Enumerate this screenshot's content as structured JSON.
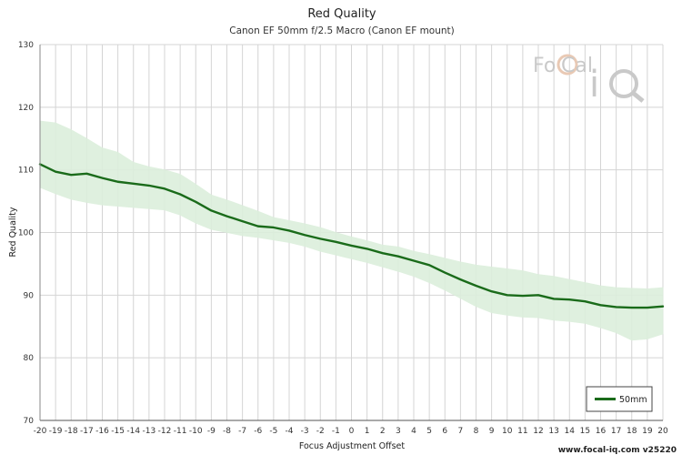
{
  "chart_data": {
    "type": "line",
    "title": "Red Quality",
    "subtitle": "Canon EF 50mm f/2.5 Macro (Canon EF mount)",
    "xlabel": "Focus Adjustment Offset",
    "ylabel": "Red Quality",
    "xlim": [
      -20,
      20
    ],
    "ylim": [
      70,
      130
    ],
    "yticks": [
      70,
      80,
      90,
      100,
      110,
      120,
      130
    ],
    "grid": true,
    "legend_position": "bottom-right",
    "series": [
      {
        "name": "50mm",
        "color": "#1a6b1a",
        "band_color": "#dcefdc",
        "x": [
          -20,
          -19,
          -18,
          -17,
          -16,
          -15,
          -14,
          -13,
          -12,
          -11,
          -10,
          -9,
          -8,
          -7,
          -6,
          -5,
          -4,
          -3,
          -2,
          -1,
          0,
          1,
          2,
          3,
          4,
          5,
          6,
          7,
          8,
          9,
          10,
          11,
          12,
          13,
          14,
          15,
          16,
          17,
          18,
          19,
          20
        ],
        "values": [
          110.9,
          109.7,
          109.2,
          109.4,
          108.7,
          108.1,
          107.8,
          107.5,
          107.0,
          106.1,
          104.9,
          103.5,
          102.6,
          101.8,
          101.0,
          100.8,
          100.3,
          99.6,
          99.0,
          98.5,
          97.9,
          97.4,
          96.7,
          96.2,
          95.5,
          94.8,
          93.6,
          92.5,
          91.5,
          90.6,
          90.0,
          89.9,
          90.0,
          89.4,
          89.3,
          89.0,
          88.4,
          88.1,
          88.0,
          88.0,
          88.2
        ],
        "upper": [
          117.8,
          117.5,
          116.4,
          115.0,
          113.5,
          112.8,
          111.2,
          110.5,
          110.0,
          109.3,
          107.7,
          106.0,
          105.2,
          104.3,
          103.4,
          102.4,
          101.9,
          101.4,
          100.8,
          100.0,
          99.3,
          98.7,
          98.0,
          97.7,
          97.0,
          96.5,
          95.9,
          95.3,
          94.8,
          94.5,
          94.2,
          93.9,
          93.3,
          93.0,
          92.5,
          92.0,
          91.5,
          91.2,
          91.1,
          91.0,
          91.2
        ],
        "lower": [
          107.2,
          106.2,
          105.3,
          104.8,
          104.4,
          104.2,
          104.0,
          103.8,
          103.6,
          102.8,
          101.5,
          100.5,
          100.0,
          99.5,
          99.2,
          98.8,
          98.4,
          97.8,
          97.0,
          96.4,
          95.8,
          95.2,
          94.5,
          93.8,
          93.0,
          92.0,
          90.8,
          89.5,
          88.2,
          87.2,
          86.8,
          86.5,
          86.4,
          86.0,
          85.8,
          85.5,
          84.8,
          84.0,
          82.8,
          83.0,
          83.8
        ]
      }
    ]
  },
  "watermark": {
    "logo_text": "FoCal iQ"
  },
  "footer_text": "www.focal-iq.com  v25220"
}
